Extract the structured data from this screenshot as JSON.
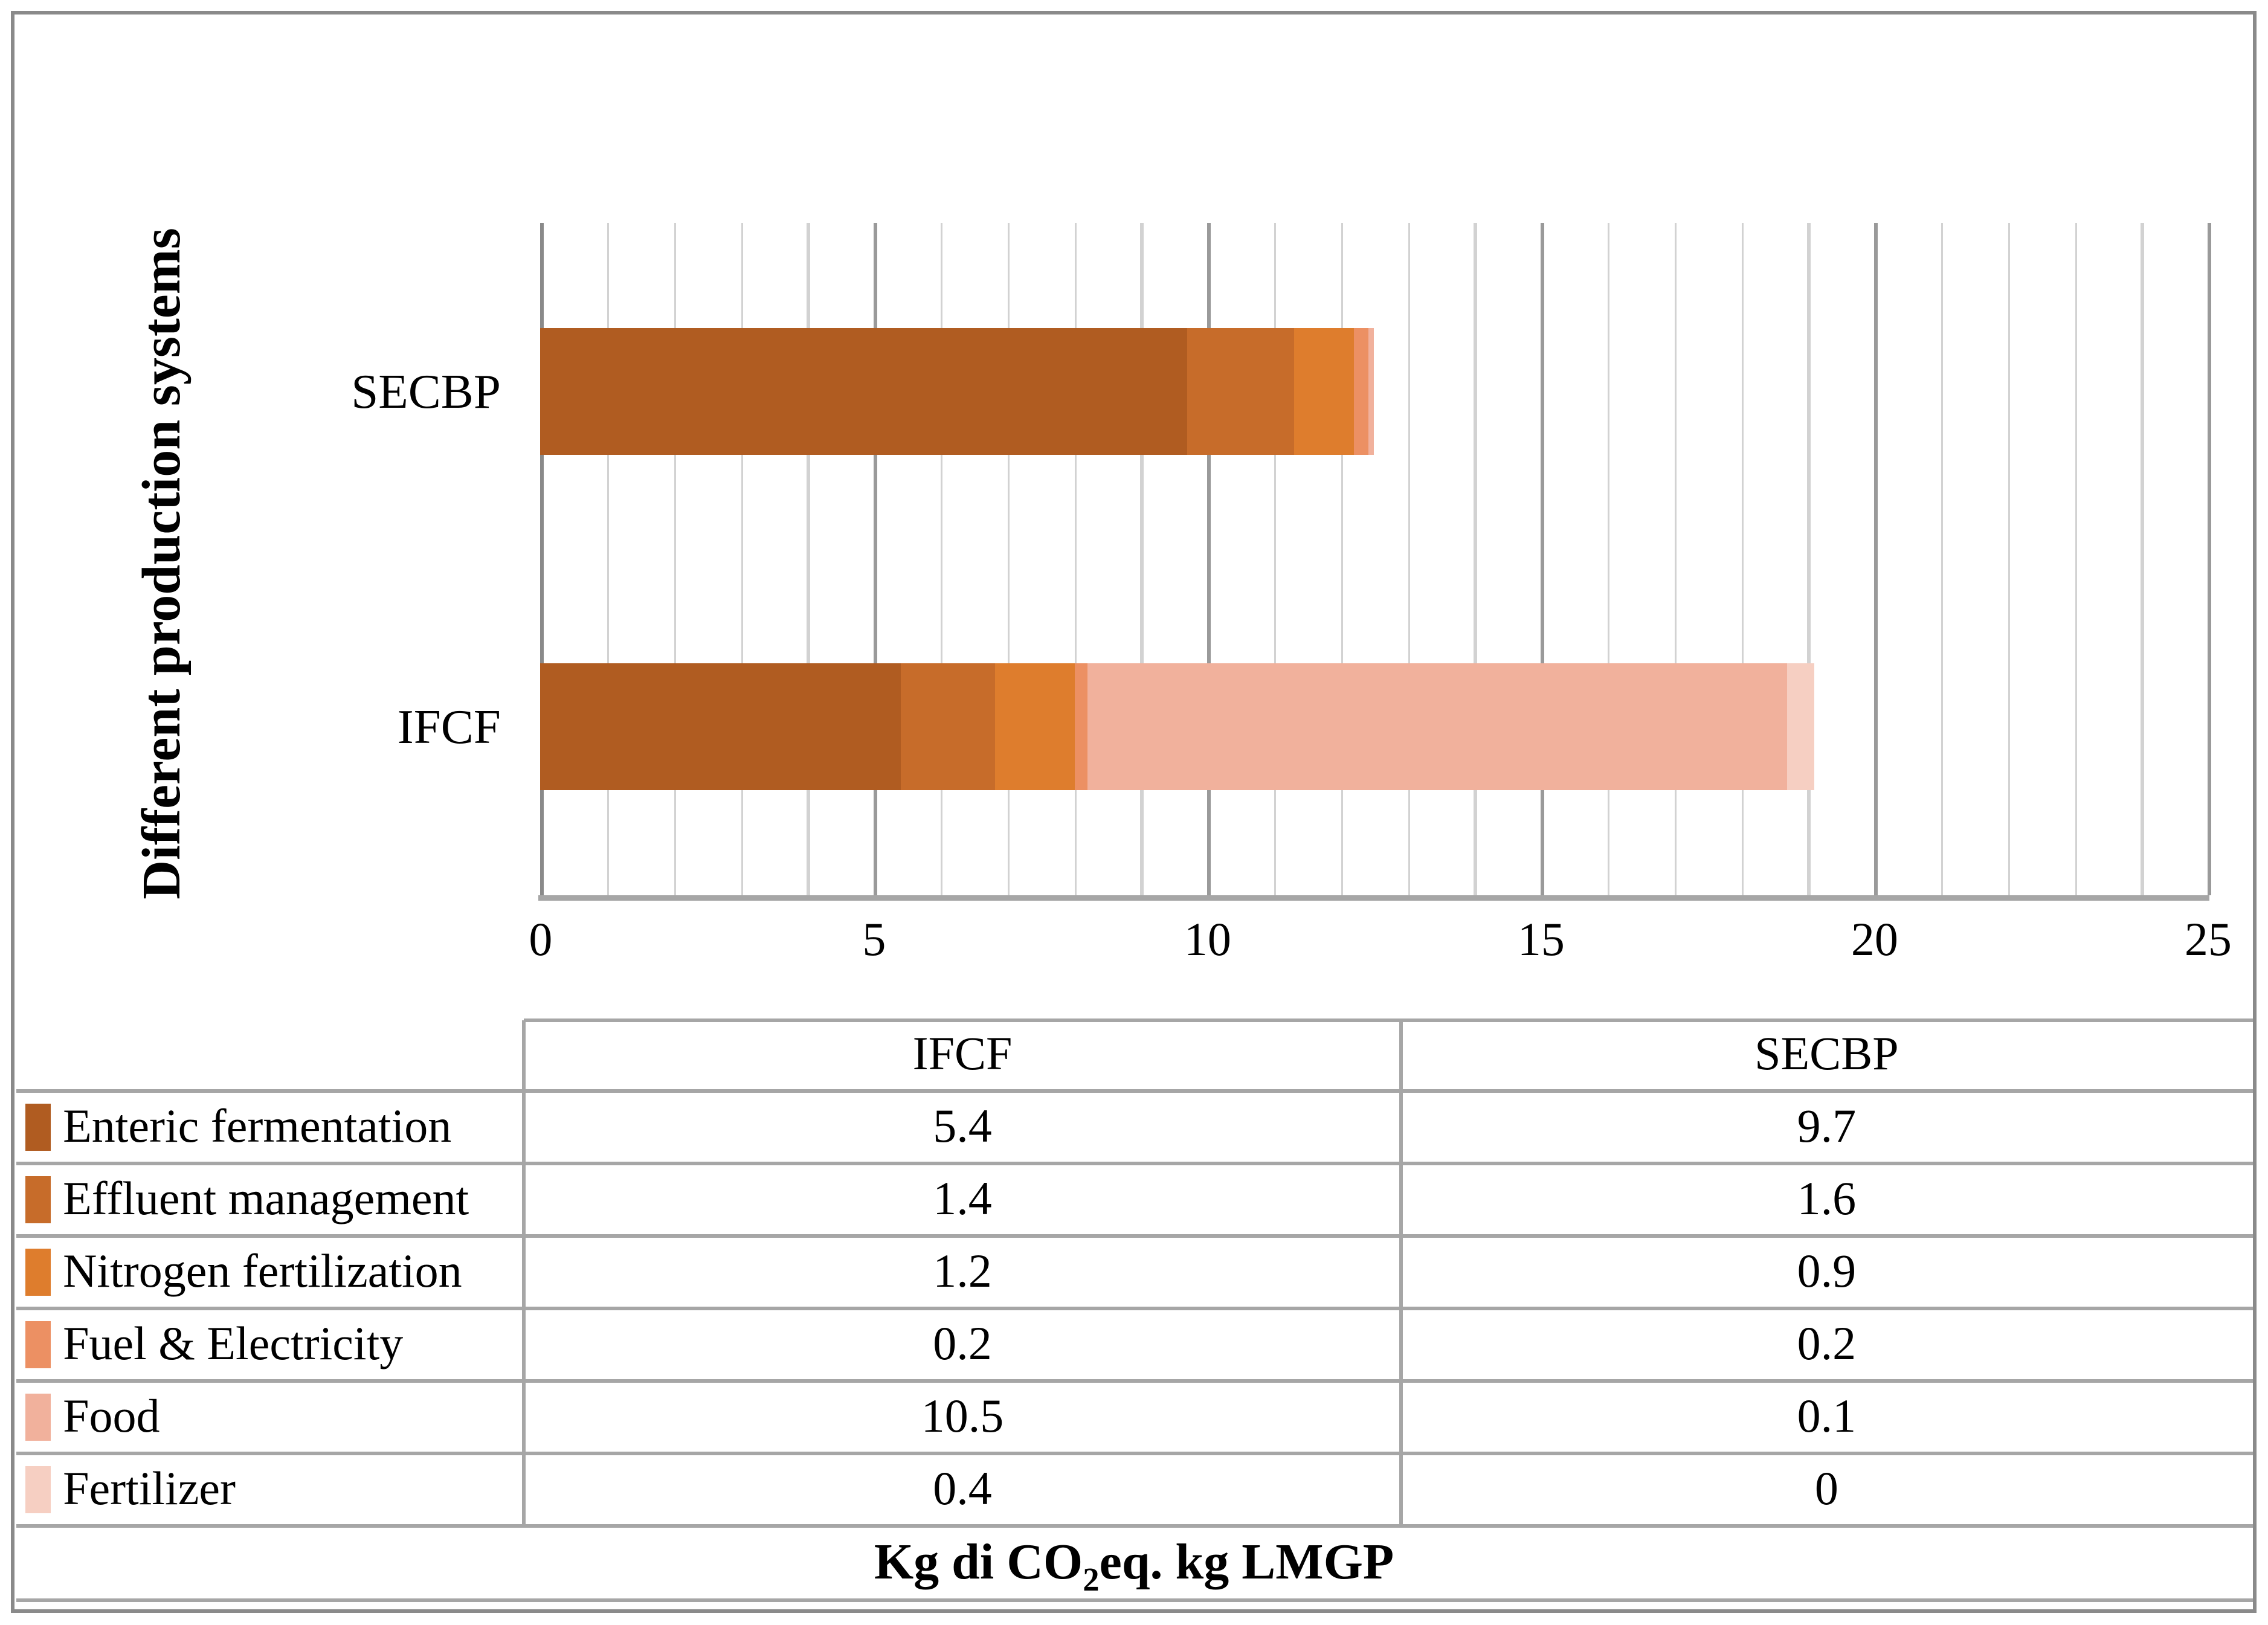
{
  "chart_data": {
    "type": "bar",
    "orientation": "horizontal",
    "stacked": true,
    "grid": true,
    "xlabel": "Kg di CO2eq. kg LMGP",
    "ylabel": "Different production systems",
    "xlim": [
      0,
      25
    ],
    "x_ticks": [
      0,
      5,
      10,
      15,
      20,
      25
    ],
    "x_tick_labels": [
      "0",
      "5",
      "10",
      "15",
      "20",
      "25"
    ],
    "minor_grid_step": 1,
    "categories": [
      "SECBP",
      "IFCF"
    ],
    "series": [
      {
        "name": "Enteric fermentation",
        "color": "#b05c21",
        "values": [
          9.7,
          5.4
        ]
      },
      {
        "name": "Effluent management",
        "color": "#c76c2a",
        "values": [
          1.6,
          1.4
        ]
      },
      {
        "name": "Nitrogen fertilization",
        "color": "#de7d2d",
        "values": [
          0.9,
          1.2
        ]
      },
      {
        "name": "Fuel & Electricity",
        "color": "#ec9063",
        "values": [
          0.2,
          0.2
        ]
      },
      {
        "name": "Food",
        "color": "#f1b19c",
        "values": [
          0.1,
          10.5
        ]
      },
      {
        "name": "Fertilizer",
        "color": "#f6cfc2",
        "values": [
          0,
          0.4
        ]
      }
    ],
    "totals": {
      "SECBP": 12.5,
      "IFCF": 19.1
    }
  },
  "table": {
    "column_headers": [
      "IFCF",
      "SECBP"
    ],
    "rows": [
      {
        "label": "Enteric fermentation",
        "ifcf": "5.4",
        "secbp": "9.7"
      },
      {
        "label": "Effluent management",
        "ifcf": "1.4",
        "secbp": "1.6"
      },
      {
        "label": "Nitrogen fertilization",
        "ifcf": "1.2",
        "secbp": "0.9"
      },
      {
        "label": "Fuel & Electricity",
        "ifcf": "0.2",
        "secbp": "0.2"
      },
      {
        "label": "Food",
        "ifcf": "10.5",
        "secbp": "0.1"
      },
      {
        "label": "Fertilizer",
        "ifcf": "0.4",
        "secbp": "0"
      }
    ],
    "caption": {
      "prefix": "Kg di CO",
      "sub": "2",
      "suffix": "eq. kg LMGP"
    }
  },
  "colors": {
    "frame_border": "#8a8a8a",
    "axis_line": "#a6a6a6",
    "major_gridline": "#9a9a9a",
    "minor_gridline": "#d2d2d2",
    "table_border": "#a6a6a6"
  }
}
